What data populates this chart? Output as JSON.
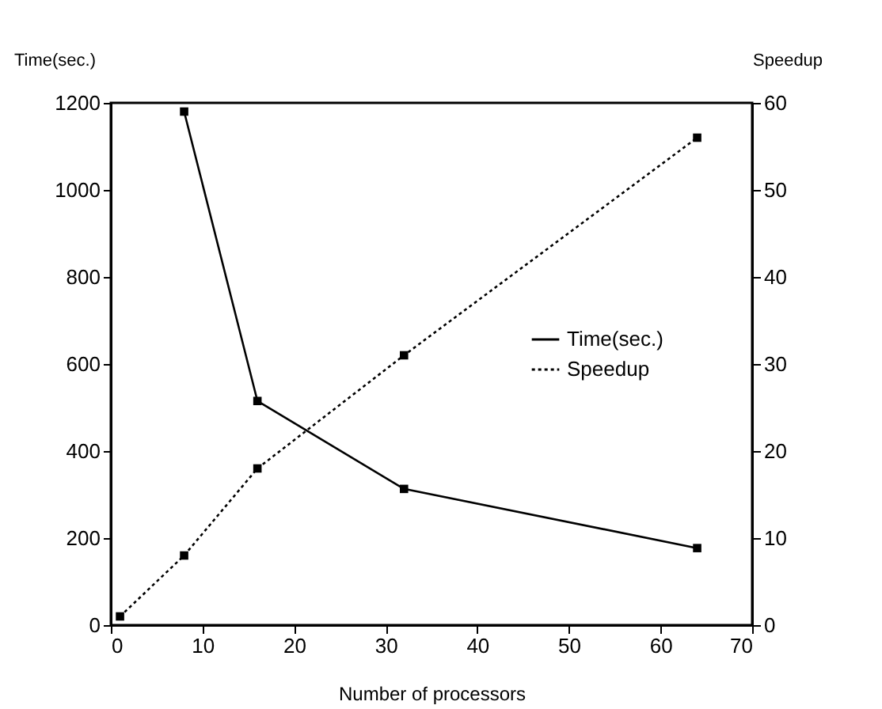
{
  "chart_data": {
    "type": "line",
    "xlabel": "Number of processors",
    "ylabel": "Time(sec.)",
    "y2label": "Speedup",
    "series": [
      {
        "name": "Time(sec.)",
        "color": "#000000",
        "x": [
          8,
          16,
          32,
          64
        ],
        "values": [
          1180,
          515,
          313,
          177
        ],
        "line_style": "solid",
        "marker": "square"
      },
      {
        "name": "Speedup",
        "color": "#000000",
        "x": [
          1,
          8,
          16,
          32,
          64
        ],
        "values": [
          1,
          8,
          18,
          31,
          56
        ],
        "line_style": "dotted",
        "marker": "square",
        "axis": "y2"
      }
    ],
    "xlim": [
      0,
      70
    ],
    "xticks": [
      0,
      10,
      20,
      30,
      40,
      50,
      60,
      70
    ],
    "ylim": [
      0,
      1200
    ],
    "yticks": [
      0,
      200,
      400,
      600,
      800,
      1000,
      1200
    ],
    "y2lim": [
      0,
      60
    ],
    "y2ticks": [
      0,
      10,
      20,
      30,
      40,
      50,
      60
    ],
    "grid": false,
    "legend": "right"
  }
}
